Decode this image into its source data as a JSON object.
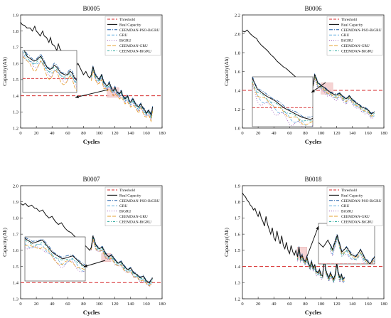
{
  "colors": {
    "threshold": "#d62728",
    "real": "#111111",
    "ceemdan_pso_bigru": "#1f5fa8",
    "gru": "#66b0e0",
    "bigru": "#9b59b6",
    "ceemdan_gru": "#e6a030",
    "ceemdan_bigru": "#2aa79b",
    "highlight": "#f4c9c9"
  },
  "chart_data": [
    {
      "type": "line",
      "title": "B0005",
      "xlabel": "Cycles",
      "ylabel": "Capacity(Ah)",
      "xlim": [
        0,
        180
      ],
      "ylim": [
        1.2,
        1.9
      ],
      "xticks": [
        "0",
        "20",
        "40",
        "60",
        "80",
        "100",
        "120",
        "140",
        "160",
        "180"
      ],
      "yticks": [
        "1.2",
        "1.3",
        "1.4",
        "1.5",
        "1.6",
        "1.7",
        "1.8",
        "1.9"
      ],
      "legend": [
        "Threshold",
        "Real Capacity",
        "CEEMDAN-PSO-BiGRU",
        "GRU",
        "BiGRU",
        "CEEMDAN-GRU",
        "CEEMDAN-BiGRU"
      ],
      "legend_position": "top-right",
      "threshold": 1.4,
      "start_cycle": 90,
      "real_capacity": {
        "x": [
          0,
          2,
          5,
          8,
          12,
          15,
          18,
          20,
          22,
          25,
          28,
          30,
          33,
          36,
          38,
          40,
          43,
          46,
          48,
          50,
          53,
          56,
          58,
          60,
          63,
          66,
          68,
          70,
          73,
          76,
          78,
          80,
          83,
          86,
          88,
          90,
          92,
          95,
          98,
          100,
          103,
          106,
          108,
          110,
          113,
          116,
          118,
          120,
          123,
          126,
          128,
          130,
          133,
          136,
          138,
          140,
          143,
          146,
          148,
          150,
          153,
          156,
          158,
          160,
          163,
          166,
          168
        ],
        "y": [
          1.855,
          1.84,
          1.835,
          1.82,
          1.82,
          1.8,
          1.83,
          1.8,
          1.79,
          1.77,
          1.8,
          1.77,
          1.76,
          1.73,
          1.76,
          1.72,
          1.71,
          1.68,
          1.72,
          1.69,
          1.67,
          1.66,
          1.64,
          1.62,
          1.64,
          1.62,
          1.6,
          1.58,
          1.6,
          1.57,
          1.55,
          1.53,
          1.55,
          1.52,
          1.51,
          1.53,
          1.58,
          1.53,
          1.51,
          1.5,
          1.53,
          1.48,
          1.47,
          1.46,
          1.48,
          1.44,
          1.43,
          1.45,
          1.42,
          1.41,
          1.43,
          1.4,
          1.38,
          1.4,
          1.37,
          1.36,
          1.38,
          1.35,
          1.34,
          1.33,
          1.35,
          1.32,
          1.31,
          1.29,
          1.31,
          1.28,
          1.33
        ]
      },
      "series": [
        {
          "name": "CEEMDAN-PSO-BiGRU",
          "offset": 0.008
        },
        {
          "name": "GRU",
          "offset": -0.018
        },
        {
          "name": "BiGRU",
          "offset": -0.028
        },
        {
          "name": "CEEMDAN-GRU",
          "offset": -0.038
        },
        {
          "name": "CEEMDAN-BiGRU",
          "offset": -0.012
        }
      ],
      "zoom_region": {
        "x": [
          110,
          125
        ],
        "y": [
          1.39,
          1.45
        ]
      }
    },
    {
      "type": "line",
      "title": "B0006",
      "xlabel": "Cycles",
      "ylabel": "Capacity(Ah)",
      "xlim": [
        0,
        180
      ],
      "ylim": [
        1.0,
        2.2
      ],
      "xticks": [
        "0",
        "20",
        "40",
        "60",
        "80",
        "100",
        "120",
        "140",
        "160",
        "180"
      ],
      "yticks": [
        "1.0",
        "1.2",
        "1.4",
        "1.6",
        "1.8",
        "2.0",
        "2.2"
      ],
      "legend": [
        "Threshold",
        "Real Capacity",
        "CEEMDAN-PSO-BiGRU",
        "GRU",
        "BiGRU",
        "CEEMDAN-GRU",
        "CEEMDAN-BiGRU"
      ],
      "legend_position": "top-right",
      "threshold": 1.4,
      "start_cycle": 90,
      "real_capacity": {
        "x": [
          0,
          3,
          6,
          10,
          14,
          18,
          20,
          24,
          28,
          32,
          36,
          40,
          44,
          48,
          52,
          56,
          60,
          64,
          68,
          72,
          76,
          80,
          84,
          88,
          90,
          92,
          96,
          100,
          104,
          108,
          112,
          116,
          120,
          124,
          128,
          132,
          136,
          140,
          144,
          148,
          152,
          156,
          160,
          164,
          168
        ],
        "y": [
          2.03,
          2.02,
          2.04,
          2.0,
          1.97,
          1.95,
          1.92,
          1.88,
          1.85,
          1.82,
          1.78,
          1.75,
          1.71,
          1.68,
          1.65,
          1.63,
          1.6,
          1.57,
          1.54,
          1.51,
          1.49,
          1.46,
          1.44,
          1.42,
          1.46,
          1.57,
          1.48,
          1.45,
          1.43,
          1.4,
          1.38,
          1.36,
          1.35,
          1.37,
          1.33,
          1.31,
          1.34,
          1.3,
          1.27,
          1.25,
          1.22,
          1.21,
          1.19,
          1.15,
          1.17
        ]
      },
      "series": [
        {
          "name": "CEEMDAN-PSO-BiGRU",
          "offset": 0.01
        },
        {
          "name": "GRU",
          "offset": -0.04
        },
        {
          "name": "BiGRU",
          "offset": -0.06
        },
        {
          "name": "CEEMDAN-GRU",
          "offset": -0.03
        },
        {
          "name": "CEEMDAN-BiGRU",
          "offset": -0.015
        }
      ],
      "zoom_region": {
        "x": [
          100,
          115
        ],
        "y": [
          1.36,
          1.48
        ]
      }
    },
    {
      "type": "line",
      "title": "B0007",
      "xlabel": "Cycles",
      "ylabel": "Capacity(Ah)",
      "xlim": [
        0,
        180
      ],
      "ylim": [
        1.3,
        2.0
      ],
      "xticks": [
        "0",
        "20",
        "40",
        "60",
        "80",
        "100",
        "120",
        "140",
        "160",
        "180"
      ],
      "yticks": [
        "1.3",
        "1.4",
        "1.5",
        "1.6",
        "1.7",
        "1.8",
        "1.9",
        "2.0"
      ],
      "legend": [
        "Threshold",
        "Real Capacity",
        "CEEMDAN-PSO-BiGRU",
        "GRU",
        "BiGRU",
        "CEEMDAN-GRU",
        "CEEMDAN-BiGRU"
      ],
      "legend_position": "top-right",
      "threshold": 1.4,
      "start_cycle": 90,
      "real_capacity": {
        "x": [
          0,
          3,
          6,
          10,
          14,
          18,
          20,
          24,
          28,
          32,
          36,
          40,
          44,
          48,
          52,
          56,
          60,
          64,
          68,
          72,
          76,
          80,
          84,
          88,
          90,
          92,
          96,
          100,
          104,
          108,
          112,
          116,
          120,
          124,
          128,
          132,
          136,
          140,
          144,
          148,
          152,
          156,
          160,
          164,
          168
        ],
        "y": [
          1.89,
          1.88,
          1.89,
          1.87,
          1.88,
          1.86,
          1.86,
          1.84,
          1.85,
          1.82,
          1.8,
          1.81,
          1.78,
          1.76,
          1.77,
          1.74,
          1.72,
          1.71,
          1.69,
          1.67,
          1.66,
          1.64,
          1.62,
          1.6,
          1.62,
          1.69,
          1.63,
          1.61,
          1.62,
          1.58,
          1.56,
          1.57,
          1.54,
          1.52,
          1.53,
          1.5,
          1.48,
          1.49,
          1.46,
          1.45,
          1.43,
          1.44,
          1.41,
          1.4,
          1.43
        ]
      },
      "series": [
        {
          "name": "CEEMDAN-PSO-BiGRU",
          "offset": 0.006
        },
        {
          "name": "GRU",
          "offset": -0.02
        },
        {
          "name": "BiGRU",
          "offset": -0.03
        },
        {
          "name": "CEEMDAN-GRU",
          "offset": -0.025
        },
        {
          "name": "CEEMDAN-BiGRU",
          "offset": -0.01
        }
      ],
      "zoom_region": {
        "x": [
          103,
          115
        ],
        "y": [
          1.53,
          1.58
        ]
      }
    },
    {
      "type": "line",
      "title": "B0018",
      "xlabel": "Cycles",
      "ylabel": "Capacity(Ah)",
      "xlim": [
        0,
        180
      ],
      "ylim": [
        1.2,
        1.9
      ],
      "xticks": [
        "0",
        "20",
        "40",
        "60",
        "80",
        "100",
        "120",
        "140",
        "160",
        "180"
      ],
      "yticks": [
        "1.2",
        "1.3",
        "1.4",
        "1.5",
        "1.6",
        "1.7",
        "1.8",
        "1.9"
      ],
      "legend": [
        "Threshold",
        "Real Capacity",
        "CEEMDAN-PSO-BiGRU",
        "GRU",
        "BiGRU",
        "CEEMDAN-GRU",
        "CEEMDAN-BiGRU"
      ],
      "legend_position": "top-right",
      "threshold": 1.4,
      "start_cycle": 70,
      "real_capacity": {
        "x": [
          0,
          2,
          4,
          6,
          8,
          10,
          12,
          14,
          16,
          18,
          20,
          22,
          24,
          26,
          28,
          30,
          32,
          34,
          36,
          38,
          40,
          42,
          44,
          46,
          48,
          50,
          52,
          54,
          56,
          58,
          60,
          62,
          64,
          66,
          68,
          70,
          72,
          74,
          76,
          78,
          80,
          82,
          84,
          86,
          88,
          90,
          92,
          94,
          96,
          98,
          100,
          102,
          104,
          106,
          108,
          110,
          112,
          114,
          116,
          118,
          120,
          122,
          124,
          126,
          128,
          130
        ],
        "y": [
          1.855,
          1.84,
          1.83,
          1.81,
          1.8,
          1.78,
          1.77,
          1.75,
          1.76,
          1.73,
          1.71,
          1.74,
          1.7,
          1.68,
          1.65,
          1.71,
          1.66,
          1.63,
          1.6,
          1.64,
          1.58,
          1.56,
          1.62,
          1.57,
          1.54,
          1.59,
          1.53,
          1.51,
          1.55,
          1.5,
          1.48,
          1.53,
          1.49,
          1.47,
          1.5,
          1.46,
          1.52,
          1.45,
          1.47,
          1.44,
          1.43,
          1.46,
          1.42,
          1.4,
          1.43,
          1.39,
          1.41,
          1.37,
          1.36,
          1.38,
          1.35,
          1.34,
          1.46,
          1.38,
          1.35,
          1.33,
          1.36,
          1.34,
          1.32,
          1.35,
          1.42,
          1.36,
          1.33,
          1.35,
          1.32,
          1.33
        ]
      },
      "series": [
        {
          "name": "CEEMDAN-PSO-BiGRU",
          "offset": 0.006
        },
        {
          "name": "GRU",
          "offset": -0.02
        },
        {
          "name": "BiGRU",
          "offset": -0.028
        },
        {
          "name": "CEEMDAN-GRU",
          "offset": -0.012
        },
        {
          "name": "CEEMDAN-BiGRU",
          "offset": -0.018
        }
      ],
      "zoom_region": {
        "x": [
          70,
          82
        ],
        "y": [
          1.44,
          1.52
        ]
      }
    }
  ]
}
